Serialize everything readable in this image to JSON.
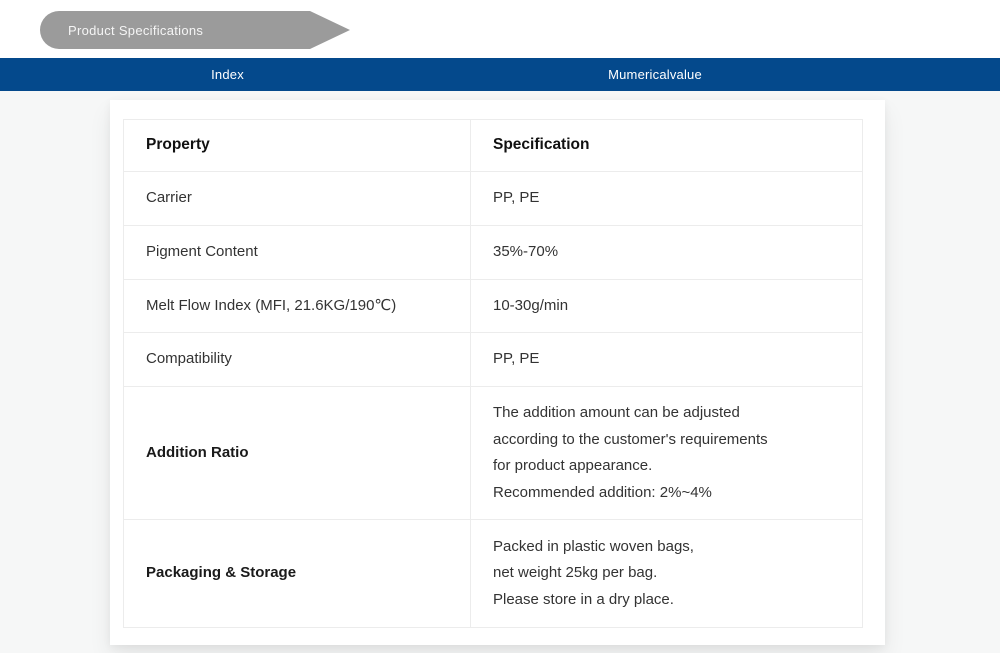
{
  "banner": {
    "label": "Product Specifications"
  },
  "index_bar": {
    "left_label": "Index",
    "right_label": "Mumericalvalue"
  },
  "table": {
    "headers": {
      "property": "Property",
      "specification": "Specification"
    },
    "rows": [
      {
        "property": "Carrier",
        "specification": "PP, PE"
      },
      {
        "property": "Pigment Content",
        "specification": "35%-70%"
      },
      {
        "property": "Melt Flow Index (MFI, 21.6KG/190℃)",
        "specification": "10-30g/min"
      },
      {
        "property": "Compatibility",
        "specification": "PP, PE"
      },
      {
        "property": "Addition Ratio",
        "specification": "The addition amount can be adjusted\naccording to the customer's requirements\nfor product appearance.\nRecommended addition: 2%~4%"
      },
      {
        "property": "Packaging & Storage",
        "specification": "Packed in plastic woven bags,\nnet weight 25kg per bag.\nPlease store in a dry place."
      }
    ]
  },
  "colors": {
    "accent_blue": "#04498c",
    "banner_gray": "#9b9b9b",
    "page_background": "#f6f7f7"
  }
}
